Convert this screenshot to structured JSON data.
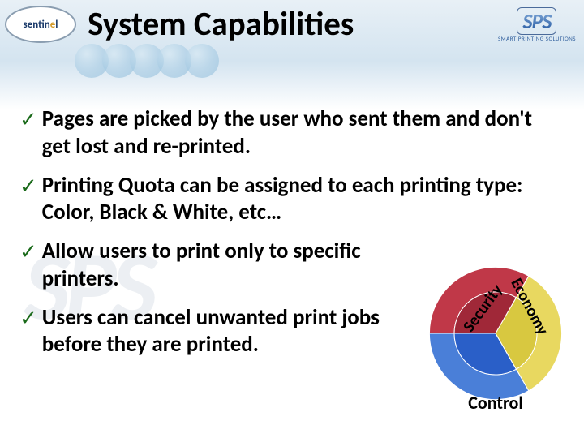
{
  "title": "System Capabilities",
  "logo_left": {
    "text_pre": "sentin",
    "text_accent": "e",
    "text_post": "l"
  },
  "logo_right": {
    "big": "SPS",
    "small": "SMART PRINTING SOLUTIONS"
  },
  "bullets": [
    "Pages are picked by the user who sent them and don't get lost and re-printed.",
    "Printing Quota can be assigned to each printing type: Color, Black & White, etc…",
    "Allow users to print only to specific printers.",
    "Users can cancel unwanted print jobs before they are printed."
  ],
  "pie": {
    "slices": [
      {
        "label": "Security",
        "color_outer": "#4a7fd8",
        "color_inner": "#2a5fc8",
        "start": 150,
        "end": 270
      },
      {
        "label": "Economy",
        "color_outer": "#c03848",
        "color_inner": "#a02838",
        "start": 270,
        "end": 390
      },
      {
        "label": "Control",
        "color_outer": "#e8d860",
        "color_inner": "#d8c840",
        "start": 30,
        "end": 150
      }
    ],
    "label_fontsize": 20,
    "control_fontsize": 22
  },
  "colors": {
    "check": "#1a6a1a",
    "text": "#000000",
    "bg_top": "#d4e4f0",
    "bg_bottom": "#ffffff"
  },
  "watermark": "SPS"
}
